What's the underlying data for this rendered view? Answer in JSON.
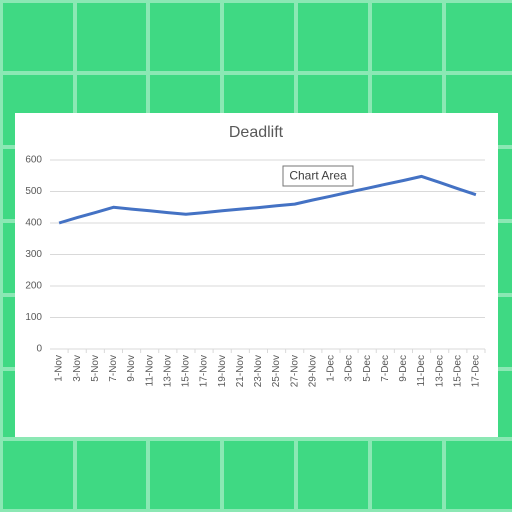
{
  "chart_data": {
    "type": "line",
    "title": "Deadlift",
    "tooltip": "Chart Area",
    "categories": [
      "1-Nov",
      "3-Nov",
      "5-Nov",
      "7-Nov",
      "9-Nov",
      "11-Nov",
      "13-Nov",
      "15-Nov",
      "17-Nov",
      "19-Nov",
      "21-Nov",
      "23-Nov",
      "25-Nov",
      "27-Nov",
      "29-Nov",
      "1-Dec",
      "3-Dec",
      "5-Dec",
      "7-Dec",
      "9-Dec",
      "11-Dec",
      "13-Dec",
      "15-Dec",
      "17-Dec"
    ],
    "series": [
      {
        "name": "Deadlift",
        "color": "#4472c4",
        "values": [
          400,
          417,
          433,
          450,
          444,
          439,
          433,
          428,
          433,
          439,
          444,
          449,
          455,
          460,
          473,
          485,
          498,
          510,
          523,
          535,
          548,
          529,
          509,
          490
        ]
      }
    ],
    "ylim": [
      0,
      600
    ],
    "yticks": [
      0,
      100,
      200,
      300,
      400,
      500,
      600
    ],
    "grid": true
  }
}
